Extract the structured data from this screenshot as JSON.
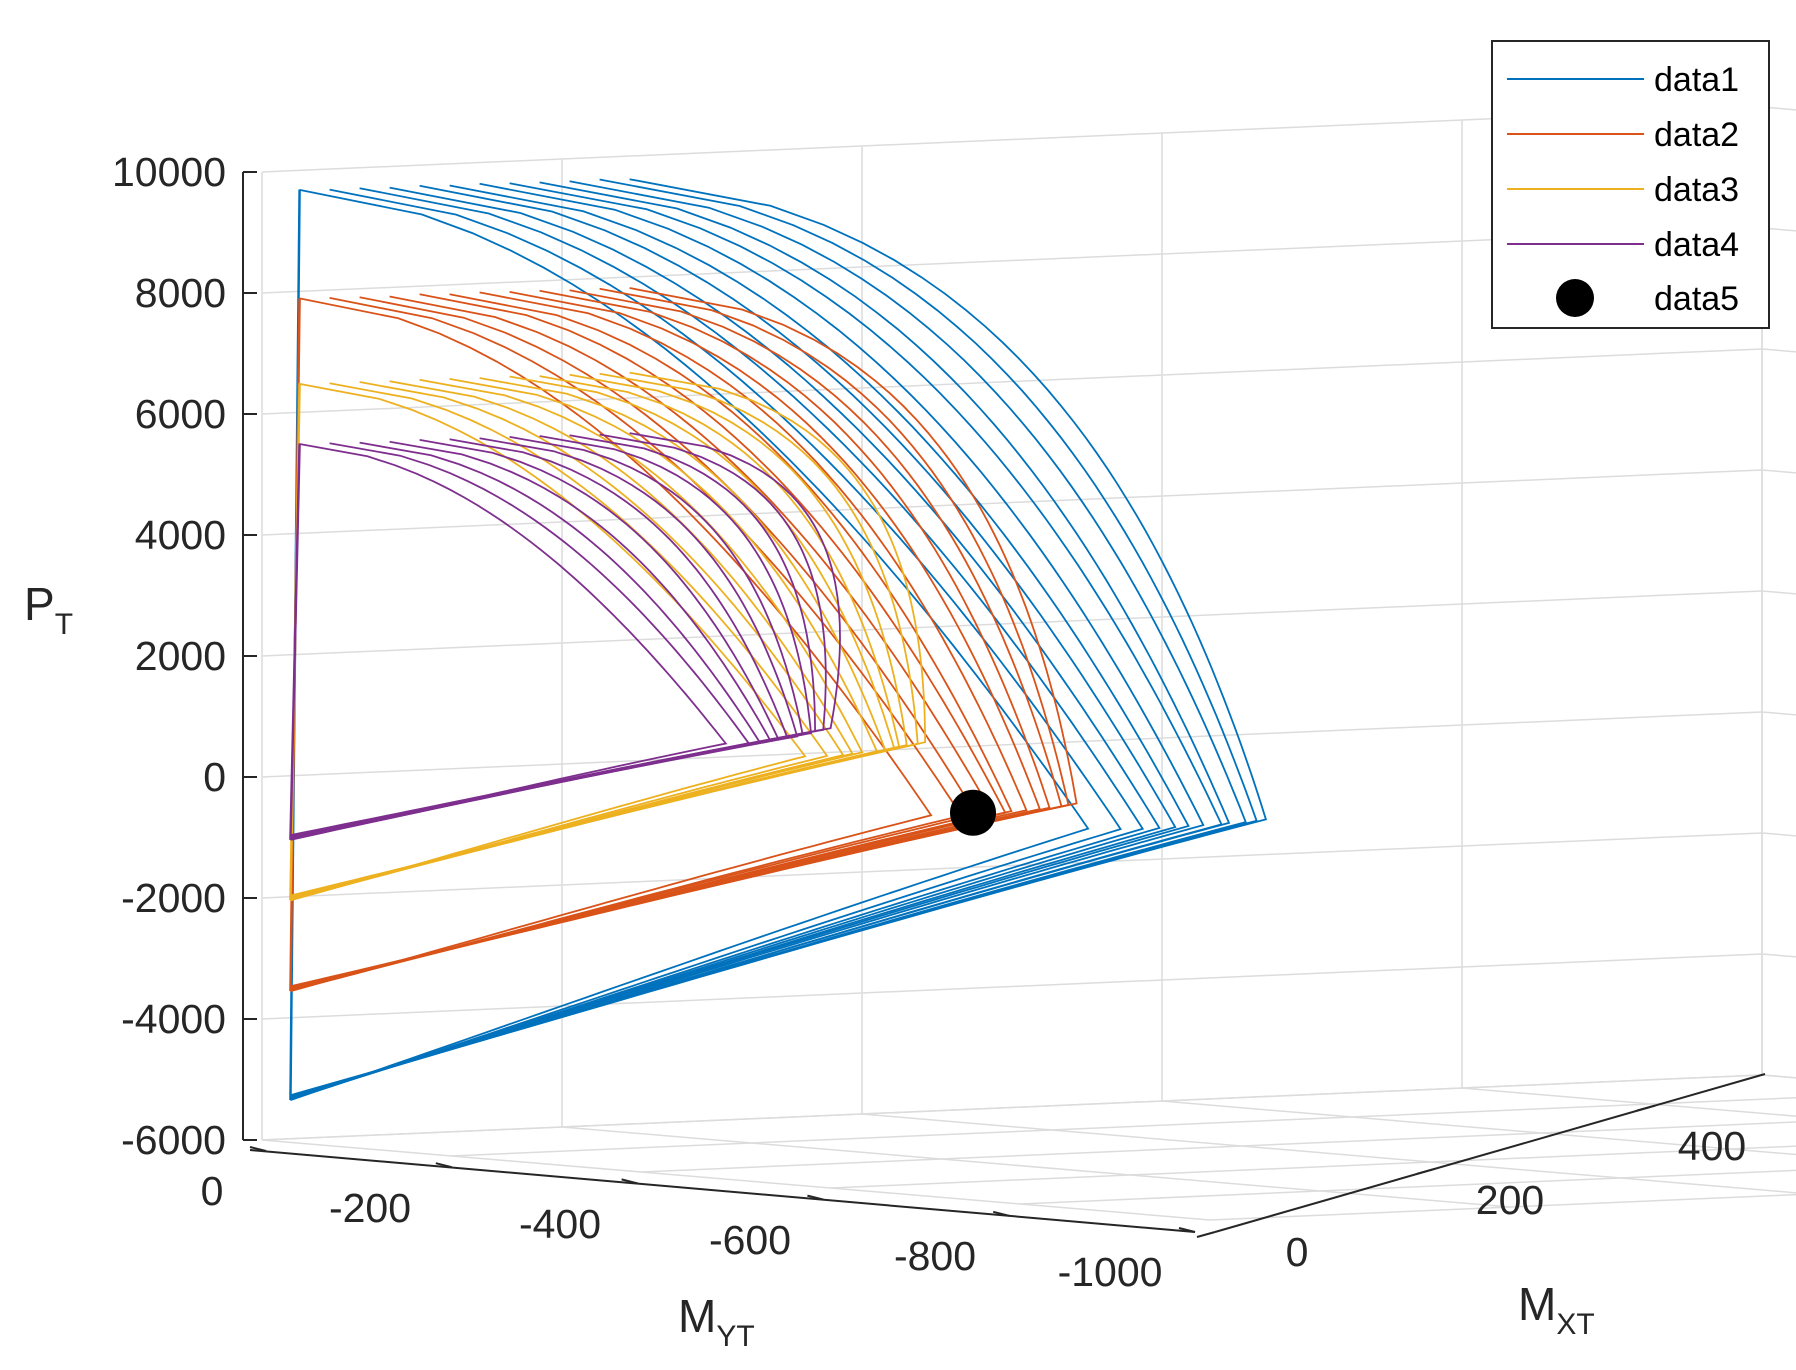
{
  "chart_data": {
    "type": "line3d",
    "title": "",
    "axes": {
      "x": {
        "label": "M",
        "label_sub": "YT",
        "ticks": [
          "0",
          "-200",
          "-400",
          "-600",
          "-800",
          "-1000"
        ],
        "range": [
          0,
          -1000
        ]
      },
      "y": {
        "label": "M",
        "label_sub": "XT",
        "ticks": [
          "0",
          "200",
          "400"
        ],
        "range": [
          0,
          500
        ]
      },
      "z": {
        "label": "P",
        "label_sub": "T",
        "ticks": [
          "10000",
          "8000",
          "6000",
          "4000",
          "2000",
          "0",
          "-2000",
          "-4000",
          "-6000"
        ],
        "range": [
          -6000,
          10000
        ]
      }
    },
    "grid": true,
    "legend": {
      "placement": "top-right",
      "entries": [
        "data1",
        "data2",
        "data3",
        "data4",
        "data5"
      ]
    },
    "series": [
      {
        "name": "data1",
        "color": "#0072BD",
        "style": "line",
        "P_max": 9700,
        "P_min": -5300,
        "M_max": -1060,
        "P_at_M_max": 500,
        "curves": 12
      },
      {
        "name": "data2",
        "color": "#D95319",
        "style": "line",
        "P_max": 7900,
        "P_min": -3500,
        "M_max": -860,
        "P_at_M_max": 500,
        "curves": 12
      },
      {
        "name": "data3",
        "color": "#EDB120",
        "style": "line",
        "P_max": 6500,
        "P_min": -2000,
        "M_max": -700,
        "P_at_M_max": 1300,
        "curves": 12
      },
      {
        "name": "data4",
        "color": "#7E2F8E",
        "style": "line",
        "P_max": 5500,
        "P_min": -1000,
        "M_max": -600,
        "P_at_M_max": 1400,
        "curves": 12
      },
      {
        "name": "data5",
        "color": "#000000",
        "style": "marker",
        "points": [
          {
            "M_YT": -750,
            "M_XT": 0,
            "P_T": 400
          }
        ]
      }
    ]
  }
}
